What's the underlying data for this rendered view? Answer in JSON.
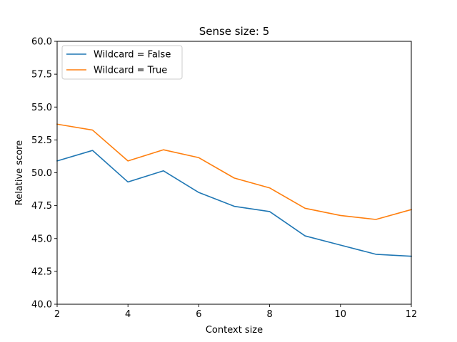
{
  "chart_data": {
    "type": "line",
    "title": "Sense size: 5",
    "xlabel": "Context size",
    "ylabel": "Relative score",
    "xlim": [
      2,
      12
    ],
    "ylim": [
      40.0,
      60.0
    ],
    "xticks": [
      2,
      4,
      6,
      8,
      10,
      12
    ],
    "xtick_labels": [
      "2",
      "4",
      "6",
      "8",
      "10",
      "12"
    ],
    "yticks": [
      40.0,
      42.5,
      45.0,
      47.5,
      50.0,
      52.5,
      55.0,
      57.5,
      60.0
    ],
    "ytick_labels": [
      "40.0",
      "42.5",
      "45.0",
      "47.5",
      "50.0",
      "52.5",
      "55.0",
      "57.5",
      "60.0"
    ],
    "grid": false,
    "legend_position": "top-left",
    "x": [
      2,
      3,
      4,
      5,
      6,
      7,
      8,
      9,
      10,
      11,
      12
    ],
    "series": [
      {
        "name": "Wildcard = False",
        "color": "#1f77b4",
        "values": [
          50.9,
          51.7,
          49.3,
          50.15,
          48.5,
          47.45,
          47.05,
          45.2,
          44.5,
          43.8,
          43.65
        ]
      },
      {
        "name": "Wildcard = True",
        "color": "#ff7f0e",
        "values": [
          53.7,
          53.25,
          50.9,
          51.75,
          51.15,
          49.6,
          48.85,
          47.3,
          46.75,
          46.45,
          47.2
        ]
      }
    ]
  }
}
